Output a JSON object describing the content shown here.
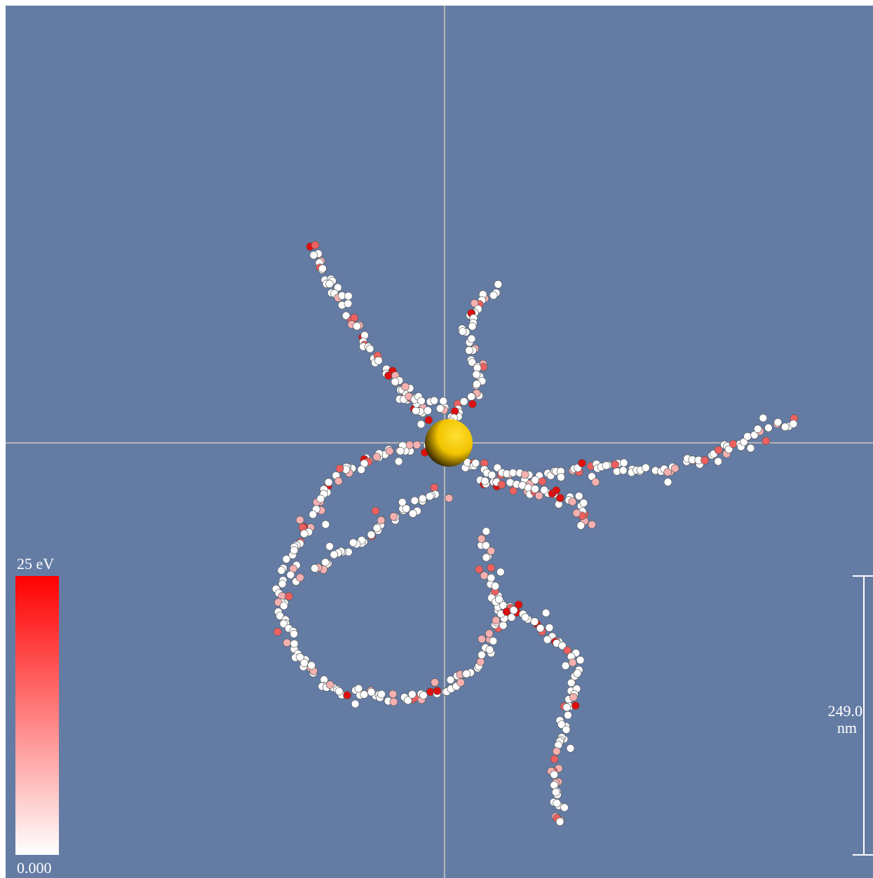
{
  "colorbar": {
    "max_label": "25 eV",
    "min_label": "0.000"
  },
  "scale_bar": {
    "value": "249.0",
    "unit": "nm"
  }
}
